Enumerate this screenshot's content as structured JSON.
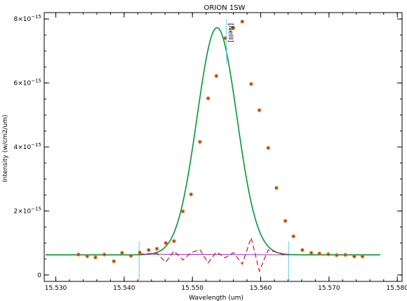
{
  "chart_data": {
    "type": "scatter",
    "title": "ORION 1SW",
    "xlabel": "Wavelength (um)",
    "ylabel": "Intensity (w/cm2/um)",
    "xlim": [
      15.5283,
      15.5807
    ],
    "ylim": [
      -2e-16,
      8.2e-15
    ],
    "x_ticks": [
      15.53,
      15.54,
      15.55,
      15.56,
      15.57,
      15.58
    ],
    "x_tick_labels": [
      "15.530",
      "15.540",
      "15.550",
      "15.560",
      "15.570",
      "15.580"
    ],
    "y_ticks": [
      0,
      2e-15,
      4e-15,
      6e-15,
      8e-15
    ],
    "y_tick_labels": [
      {
        "mantissa": "0",
        "exponent": ""
      },
      {
        "mantissa": "2×10",
        "exponent": "−15"
      },
      {
        "mantissa": "4×10",
        "exponent": "−15"
      },
      {
        "mantissa": "6×10",
        "exponent": "−15"
      },
      {
        "mantissa": "8×10",
        "exponent": "−15"
      }
    ],
    "grid": false,
    "legend": "none",
    "annotation": {
      "label": "[NeIII]",
      "x": 15.555,
      "y_top": 8e-15,
      "y_bottom": 6.6e-15
    },
    "fit_window": [
      15.5422,
      15.5641
    ],
    "fit_window_marker_height": [
      1.05e-15,
      1.05e-15
    ],
    "series": [
      {
        "role": "observed",
        "style": "asterisk",
        "color": "#d2691e",
        "x": [
          15.5333,
          15.5346,
          15.5358,
          15.5371,
          15.5385,
          15.5397,
          15.541,
          15.5423,
          15.5436,
          15.5448,
          15.5461,
          15.5473,
          15.5486,
          15.5498,
          15.5511,
          15.5523,
          15.5535,
          15.5548,
          15.556,
          15.5573,
          15.5586,
          15.5598,
          15.5611,
          15.5623,
          15.5636,
          15.5648,
          15.5661,
          15.5674,
          15.5686,
          15.5699,
          15.5711,
          15.5724,
          15.5737,
          15.5749
        ],
        "y": [
          6.4e-16,
          5.9e-16,
          5.5e-16,
          6.4e-16,
          4.3e-16,
          6.9e-16,
          6e-16,
          7e-16,
          7.8e-16,
          8.2e-16,
          1e-15,
          1.06e-15,
          1.99e-15,
          2.52e-15,
          4.16e-15,
          5.52e-15,
          6.22e-15,
          7.4e-15,
          7.72e-15,
          7.92e-15,
          5.97e-15,
          5.15e-15,
          3.97e-15,
          2.72e-15,
          1.69e-15,
          1.21e-15,
          7.8e-16,
          6.9e-16,
          6.7e-16,
          6.5e-16,
          6.2e-16,
          6.3e-16,
          5.8e-16,
          5.8e-16
        ]
      },
      {
        "role": "fit",
        "style": "line",
        "color": "#009933",
        "model": "gaussian_plus_constant",
        "amplitude": 7.1e-15,
        "center": 15.5536,
        "sigma": 0.00292,
        "baseline": 6.3e-16,
        "x_range": [
          15.5285,
          15.5775
        ]
      },
      {
        "role": "continuum",
        "style": "line",
        "color": "#9933cc",
        "x": [
          15.5422,
          15.5641
        ],
        "y": [
          6.5e-16,
          6.3e-16
        ]
      },
      {
        "role": "residual",
        "style": "dashed",
        "color": "#cc0000",
        "x": [
          15.5422,
          15.5448,
          15.5461,
          15.5473,
          15.5486,
          15.5498,
          15.5511,
          15.5523,
          15.5535,
          15.5548,
          15.556,
          15.5573,
          15.5586,
          15.5598,
          15.5611,
          15.5623,
          15.5636,
          15.5641
        ],
        "y": [
          6.5e-16,
          6.8e-16,
          4e-16,
          7.5e-16,
          4.7e-16,
          7e-16,
          7.9e-16,
          3.8e-16,
          7.2e-16,
          5.4e-16,
          7e-16,
          3.4e-16,
          1.17e-15,
          1.2e-16,
          7.9e-16,
          7.1e-16,
          6.2e-16,
          6.4e-16
        ]
      }
    ]
  }
}
